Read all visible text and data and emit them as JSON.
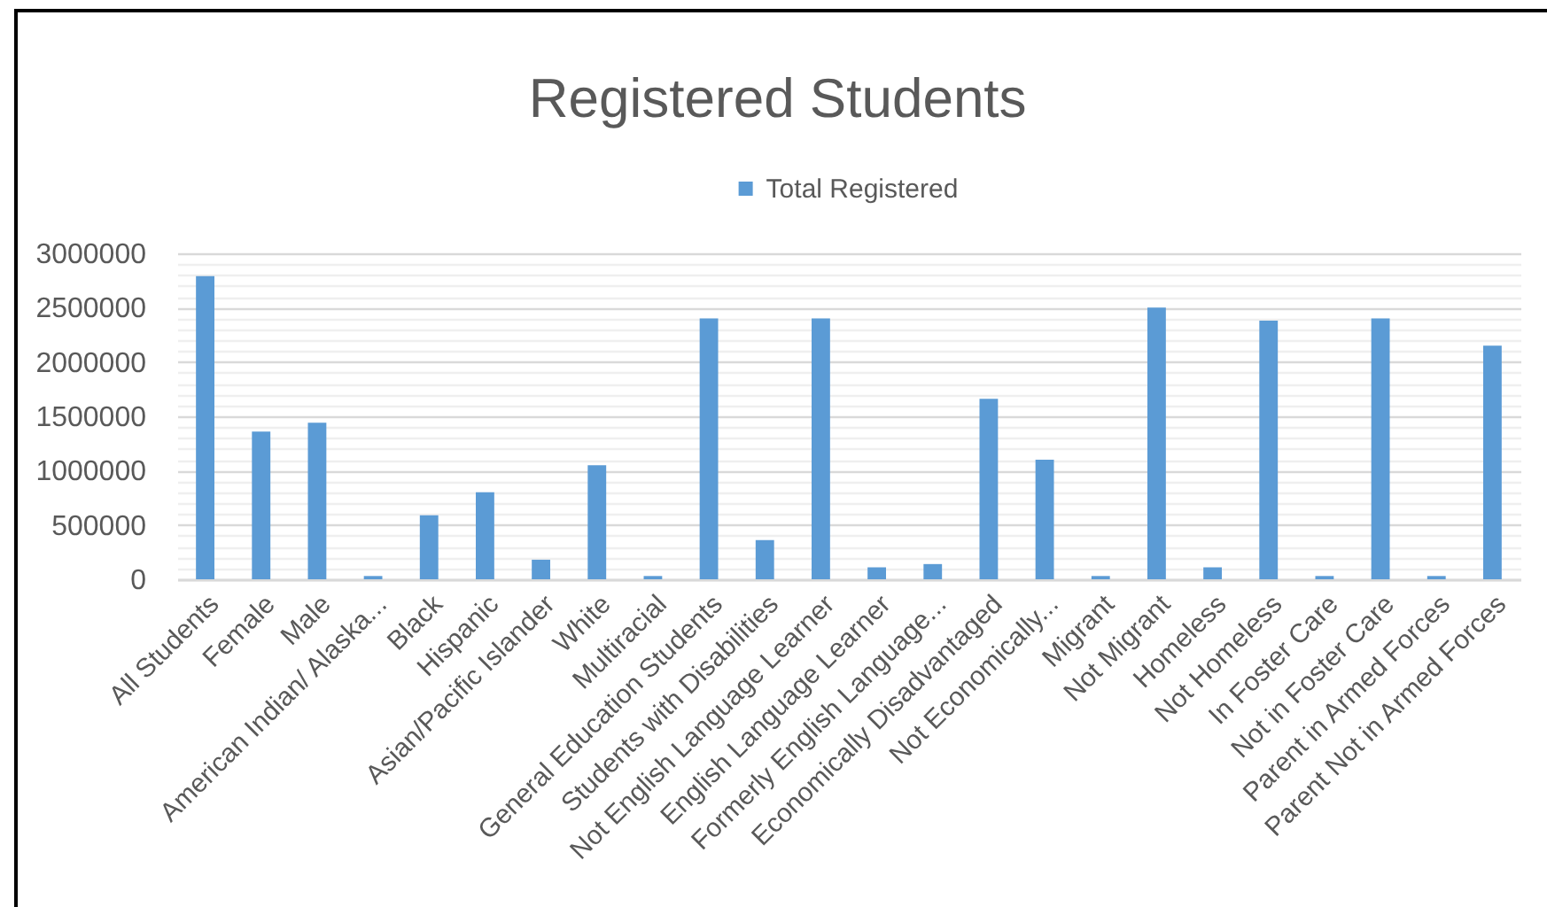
{
  "chart_data": {
    "type": "bar",
    "title": "Registered Students",
    "categories": [
      "All Students",
      "Female",
      "Male",
      "American Indian/ Alaska...",
      "Black",
      "Hispanic",
      "Asian/Pacific Islander",
      "White",
      "Multiracial",
      "General Education Students",
      "Students with Disabilities",
      "Not English Language Learner",
      "English Language Learner",
      "Formerly English Language...",
      "Economically Disadvantaged",
      "Not Economically...",
      "Migrant",
      "Not Migrant",
      "Homeless",
      "Not Homeless",
      "In Foster Care",
      "Not in Foster Care",
      "Parent in Armed Forces",
      "Parent Not in Armed Forces"
    ],
    "series": [
      {
        "name": "Total Registered",
        "color": "#5b9bd5",
        "values": [
          2790000,
          1360000,
          1440000,
          30000,
          590000,
          800000,
          180000,
          1050000,
          30000,
          2400000,
          360000,
          2400000,
          110000,
          140000,
          1660000,
          1100000,
          30000,
          2500000,
          110000,
          2380000,
          30000,
          2400000,
          30000,
          2150000
        ]
      }
    ],
    "ylim": [
      0,
      3000000
    ],
    "yticks": [
      0,
      {
        "value": 100000,
        "label": null
      },
      {
        "value": 200000,
        "label": null
      },
      {
        "value": 300000,
        "label": null
      },
      {
        "value": 400000,
        "label": null
      },
      500000,
      {
        "value": 600000,
        "label": null
      },
      {
        "value": 700000,
        "label": null
      },
      {
        "value": 800000,
        "label": null
      },
      {
        "value": 900000,
        "label": null
      },
      1000000,
      {
        "value": 1100000,
        "label": null
      },
      {
        "value": 1200000,
        "label": null
      },
      {
        "value": 1300000,
        "label": null
      },
      {
        "value": 1400000,
        "label": null
      },
      1500000,
      {
        "value": 1600000,
        "label": null
      },
      {
        "value": 1700000,
        "label": null
      },
      {
        "value": 1800000,
        "label": null
      },
      {
        "value": 1900000,
        "label": null
      },
      2000000,
      {
        "value": 2100000,
        "label": null
      },
      {
        "value": 2200000,
        "label": null
      },
      {
        "value": 2300000,
        "label": null
      },
      {
        "value": 2400000,
        "label": null
      },
      2500000,
      {
        "value": 2600000,
        "label": null
      },
      {
        "value": 2700000,
        "label": null
      },
      {
        "value": 2800000,
        "label": null
      },
      {
        "value": 2900000,
        "label": null
      },
      3000000
    ],
    "grid": true,
    "legend": "top"
  }
}
